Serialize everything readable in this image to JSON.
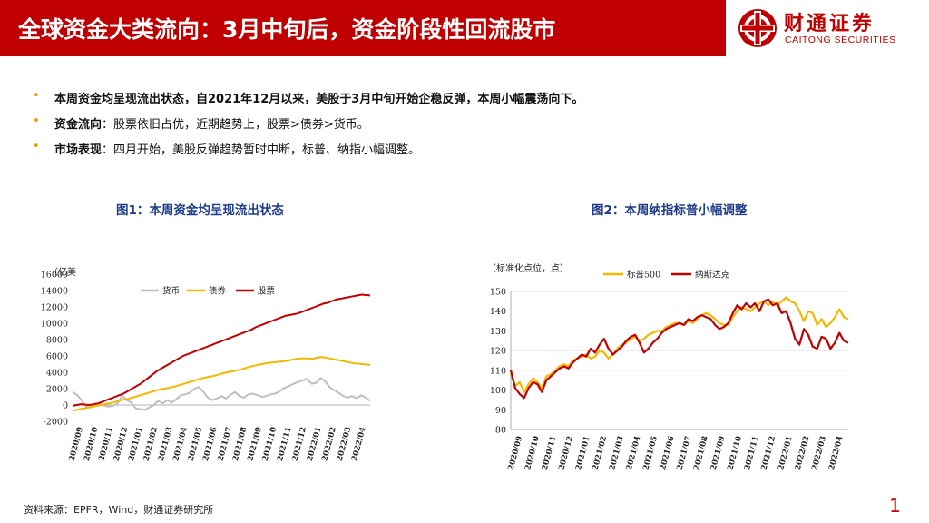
{
  "header": {
    "title": "全球资金大类流向：3月中旬后，资金阶段性回流股市",
    "logo_cn": "财通证券",
    "logo_en": "CAITONG SECURITIES",
    "bar_color": "#c00000"
  },
  "bullets": [
    {
      "strong": "本周资金均呈现流出状态，自2021年12月以来，美股于3月中旬开始企稳反弹，本周小幅震荡向下。",
      "rest": ""
    },
    {
      "strong": "资金流向",
      "rest": "：股票依旧占优，近期趋势上，股票>债券>货币。"
    },
    {
      "strong": "市场表现",
      "rest": "：四月开始，美股反弹趋势暂时中断，标普、纳指小幅调整。"
    }
  ],
  "source": "资料来源：EPFR，Wind，财通证券研究所",
  "page_number": "1",
  "chart_data": [
    {
      "type": "line",
      "title": "图1：本周资金均呈现流出状态",
      "unit_label": "（亿美",
      "ylim": [
        -2000,
        16000
      ],
      "yticks": [
        -2000,
        0,
        2000,
        4000,
        6000,
        8000,
        10000,
        12000,
        14000,
        16000
      ],
      "ytick_labels": [
        "-2000",
        "0",
        "2000",
        "4000",
        "6000",
        "8000",
        "10000",
        "12000",
        "14000",
        "16000"
      ],
      "xtick_labels": [
        "2020/09",
        "2020/10",
        "2020/11",
        "2020/12",
        "2021/01",
        "2021/02",
        "2021/03",
        "2021/04",
        "2021/05",
        "2021/06",
        "2021/07",
        "2021/08",
        "2021/09",
        "2021/10",
        "2021/11",
        "2021/12",
        "2022/01",
        "2022/02",
        "2022/03",
        "2022/04"
      ],
      "legend_position": "top",
      "series": [
        {
          "name": "货币",
          "color": "#bfbfbf",
          "values": [
            1600,
            1200,
            600,
            -200,
            -300,
            0,
            200,
            -100,
            -200,
            -100,
            200,
            1200,
            600,
            300,
            -400,
            -500,
            -600,
            -300,
            0,
            500,
            200,
            600,
            300,
            700,
            1200,
            1300,
            1500,
            2000,
            2200,
            1600,
            900,
            600,
            800,
            1100,
            800,
            1200,
            1600,
            1100,
            900,
            1300,
            1400,
            1200,
            1000,
            1100,
            1300,
            1400,
            1700,
            2100,
            2300,
            2600,
            2800,
            3000,
            3200,
            2600,
            2700,
            3300,
            2900,
            2200,
            1800,
            1500,
            1100,
            900,
            1100,
            800,
            1200,
            900,
            500
          ]
        },
        {
          "name": "债券",
          "color": "#f2b800",
          "values": [
            -700,
            -600,
            -500,
            -400,
            -300,
            -200,
            -100,
            0,
            100,
            200,
            300,
            450,
            600,
            700,
            800,
            950,
            1100,
            1250,
            1400,
            1550,
            1700,
            1850,
            1950,
            2050,
            2150,
            2250,
            2400,
            2550,
            2700,
            2850,
            3000,
            3150,
            3300,
            3400,
            3500,
            3600,
            3750,
            3900,
            4000,
            4100,
            4200,
            4300,
            4450,
            4600,
            4750,
            4850,
            4950,
            5050,
            5150,
            5200,
            5250,
            5300,
            5350,
            5450,
            5550,
            5650,
            5700,
            5700,
            5700,
            5650,
            5800,
            5850,
            5800,
            5700,
            5600,
            5500,
            5400,
            5300,
            5200,
            5100,
            5050,
            5000,
            4950,
            4900
          ]
        },
        {
          "name": "股票",
          "color": "#c00000",
          "values": [
            -100,
            0,
            100,
            50,
            0,
            100,
            200,
            400,
            600,
            800,
            1000,
            1200,
            1400,
            1700,
            2000,
            2300,
            2600,
            3000,
            3400,
            3800,
            4200,
            4500,
            4800,
            5100,
            5400,
            5700,
            6000,
            6200,
            6400,
            6600,
            6800,
            7000,
            7200,
            7400,
            7600,
            7800,
            8000,
            8200,
            8400,
            8600,
            8800,
            9000,
            9200,
            9500,
            9700,
            9900,
            10100,
            10300,
            10500,
            10700,
            10900,
            11000,
            11100,
            11200,
            11400,
            11600,
            11800,
            12000,
            12200,
            12400,
            12500,
            12700,
            12900,
            13000,
            13100,
            13200,
            13300,
            13400,
            13500,
            13450,
            13400
          ]
        }
      ]
    },
    {
      "type": "line",
      "title": "图2：本周纳指标普小幅调整",
      "unit_label": "（标准化点位，点）",
      "ylim": [
        80,
        150
      ],
      "yticks": [
        80,
        90,
        100,
        110,
        120,
        130,
        140,
        150
      ],
      "ytick_labels": [
        "80",
        "90",
        "100",
        "110",
        "120",
        "130",
        "140",
        "150"
      ],
      "xtick_labels": [
        "2020/09",
        "2020/10",
        "2020/11",
        "2020/12",
        "2021/01",
        "2021/02",
        "2021/03",
        "2021/04",
        "2021/05",
        "2021/06",
        "2021/07",
        "2021/08",
        "2021/09",
        "2021/10",
        "2021/11",
        "2021/12",
        "2022/01",
        "2022/02",
        "2022/03",
        "2022/04"
      ],
      "legend_position": "top",
      "series": [
        {
          "name": "标普500",
          "color": "#f2b800",
          "values": [
            108,
            102,
            104,
            99,
            103,
            106,
            104,
            101,
            107,
            108,
            110,
            112,
            113,
            112,
            115,
            116,
            117,
            118,
            116,
            117,
            120,
            119,
            116,
            118,
            121,
            123,
            124,
            126,
            127,
            125,
            126,
            128,
            129,
            130,
            130,
            132,
            133,
            134,
            134,
            133,
            135,
            134,
            136,
            138,
            139,
            138,
            136,
            134,
            133,
            133,
            137,
            140,
            142,
            141,
            140,
            142,
            144,
            145,
            143,
            145,
            143,
            145,
            147,
            145,
            144,
            140,
            135,
            140,
            139,
            133,
            136,
            132,
            134,
            137,
            141,
            137,
            136
          ]
        },
        {
          "name": "纳斯达克",
          "color": "#c00000",
          "values": [
            110,
            101,
            98,
            96,
            101,
            104,
            103,
            99,
            105,
            107,
            109,
            111,
            112,
            111,
            114,
            116,
            118,
            117,
            121,
            119,
            123,
            126,
            121,
            118,
            120,
            122,
            125,
            127,
            128,
            124,
            119,
            121,
            124,
            126,
            129,
            131,
            132,
            133,
            134,
            133,
            136,
            135,
            137,
            138,
            137,
            136,
            133,
            131,
            132,
            134,
            139,
            143,
            141,
            144,
            142,
            144,
            140,
            145,
            146,
            143,
            144,
            139,
            140,
            134,
            126,
            123,
            131,
            128,
            122,
            121,
            127,
            126,
            121,
            124,
            129,
            125,
            124
          ]
        }
      ]
    }
  ]
}
